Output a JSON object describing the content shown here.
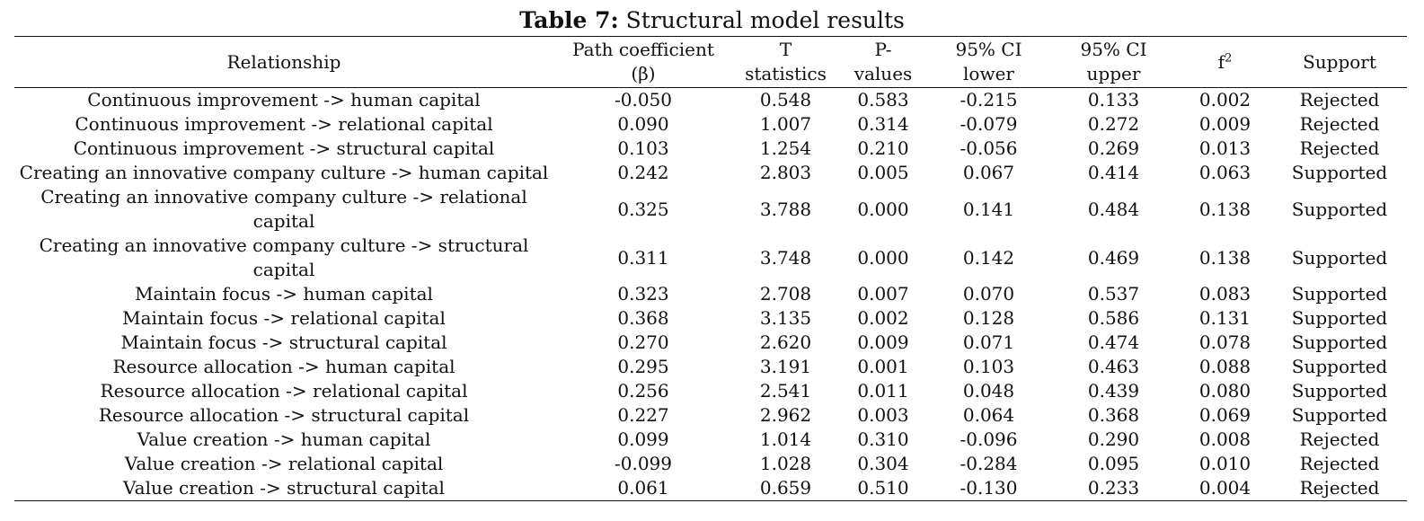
{
  "caption": {
    "label": "Table 7:",
    "title": "Structural model results"
  },
  "headers": {
    "relationship": "Relationship",
    "path_coefficient_line1": "Path coefficient",
    "path_coefficient_line2": "(β)",
    "t_stat_line1": "T",
    "t_stat_line2": "statistics",
    "p_values_line1": "P-",
    "p_values_line2": "values",
    "ci_lower_line1": "95% CI",
    "ci_lower_line2": "lower",
    "ci_upper_line1": "95% CI",
    "ci_upper_line2": "upper",
    "f2_base": "f",
    "f2_exp": "2",
    "support": "Support"
  },
  "rows": [
    {
      "relationship": "Continuous improvement -> human capital",
      "beta": "-0.050",
      "t": "0.548",
      "p": "0.583",
      "ci_lower": "-0.215",
      "ci_upper": "0.133",
      "f2": "0.002",
      "support": "Rejected"
    },
    {
      "relationship": "Continuous improvement -> relational capital",
      "beta": "0.090",
      "t": "1.007",
      "p": "0.314",
      "ci_lower": "-0.079",
      "ci_upper": "0.272",
      "f2": "0.009",
      "support": "Rejected"
    },
    {
      "relationship": "Continuous improvement -> structural capital",
      "beta": "0.103",
      "t": "1.254",
      "p": "0.210",
      "ci_lower": "-0.056",
      "ci_upper": "0.269",
      "f2": "0.013",
      "support": "Rejected"
    },
    {
      "relationship": "Creating an innovative company culture -> human capital",
      "beta": "0.242",
      "t": "2.803",
      "p": "0.005",
      "ci_lower": "0.067",
      "ci_upper": "0.414",
      "f2": "0.063",
      "support": "Supported"
    },
    {
      "relationship": "Creating an innovative company culture -> relational capital",
      "beta": "0.325",
      "t": "3.788",
      "p": "0.000",
      "ci_lower": "0.141",
      "ci_upper": "0.484",
      "f2": "0.138",
      "support": "Supported"
    },
    {
      "relationship": "Creating an innovative company culture -> structural capital",
      "beta": "0.311",
      "t": "3.748",
      "p": "0.000",
      "ci_lower": "0.142",
      "ci_upper": "0.469",
      "f2": "0.138",
      "support": "Supported"
    },
    {
      "relationship": "Maintain focus -> human capital",
      "beta": "0.323",
      "t": "2.708",
      "p": "0.007",
      "ci_lower": "0.070",
      "ci_upper": "0.537",
      "f2": "0.083",
      "support": "Supported"
    },
    {
      "relationship": "Maintain focus -> relational capital",
      "beta": "0.368",
      "t": "3.135",
      "p": "0.002",
      "ci_lower": "0.128",
      "ci_upper": "0.586",
      "f2": "0.131",
      "support": "Supported"
    },
    {
      "relationship": "Maintain focus -> structural capital",
      "beta": "0.270",
      "t": "2.620",
      "p": "0.009",
      "ci_lower": "0.071",
      "ci_upper": "0.474",
      "f2": "0.078",
      "support": "Supported"
    },
    {
      "relationship": "Resource allocation -> human capital",
      "beta": "0.295",
      "t": "3.191",
      "p": "0.001",
      "ci_lower": "0.103",
      "ci_upper": "0.463",
      "f2": "0.088",
      "support": "Supported"
    },
    {
      "relationship": "Resource allocation -> relational capital",
      "beta": "0.256",
      "t": "2.541",
      "p": "0.011",
      "ci_lower": "0.048",
      "ci_upper": "0.439",
      "f2": "0.080",
      "support": "Supported"
    },
    {
      "relationship": "Resource allocation -> structural capital",
      "beta": "0.227",
      "t": "2.962",
      "p": "0.003",
      "ci_lower": "0.064",
      "ci_upper": "0.368",
      "f2": "0.069",
      "support": "Supported"
    },
    {
      "relationship": "Value creation -> human capital",
      "beta": "0.099",
      "t": "1.014",
      "p": "0.310",
      "ci_lower": "-0.096",
      "ci_upper": "0.290",
      "f2": "0.008",
      "support": "Rejected"
    },
    {
      "relationship": "Value creation -> relational capital",
      "beta": "-0.099",
      "t": "1.028",
      "p": "0.304",
      "ci_lower": "-0.284",
      "ci_upper": "0.095",
      "f2": "0.010",
      "support": "Rejected"
    },
    {
      "relationship": "Value creation -> structural capital",
      "beta": "0.061",
      "t": "0.659",
      "p": "0.510",
      "ci_lower": "-0.130",
      "ci_upper": "0.233",
      "f2": "0.004",
      "support": "Rejected"
    }
  ]
}
